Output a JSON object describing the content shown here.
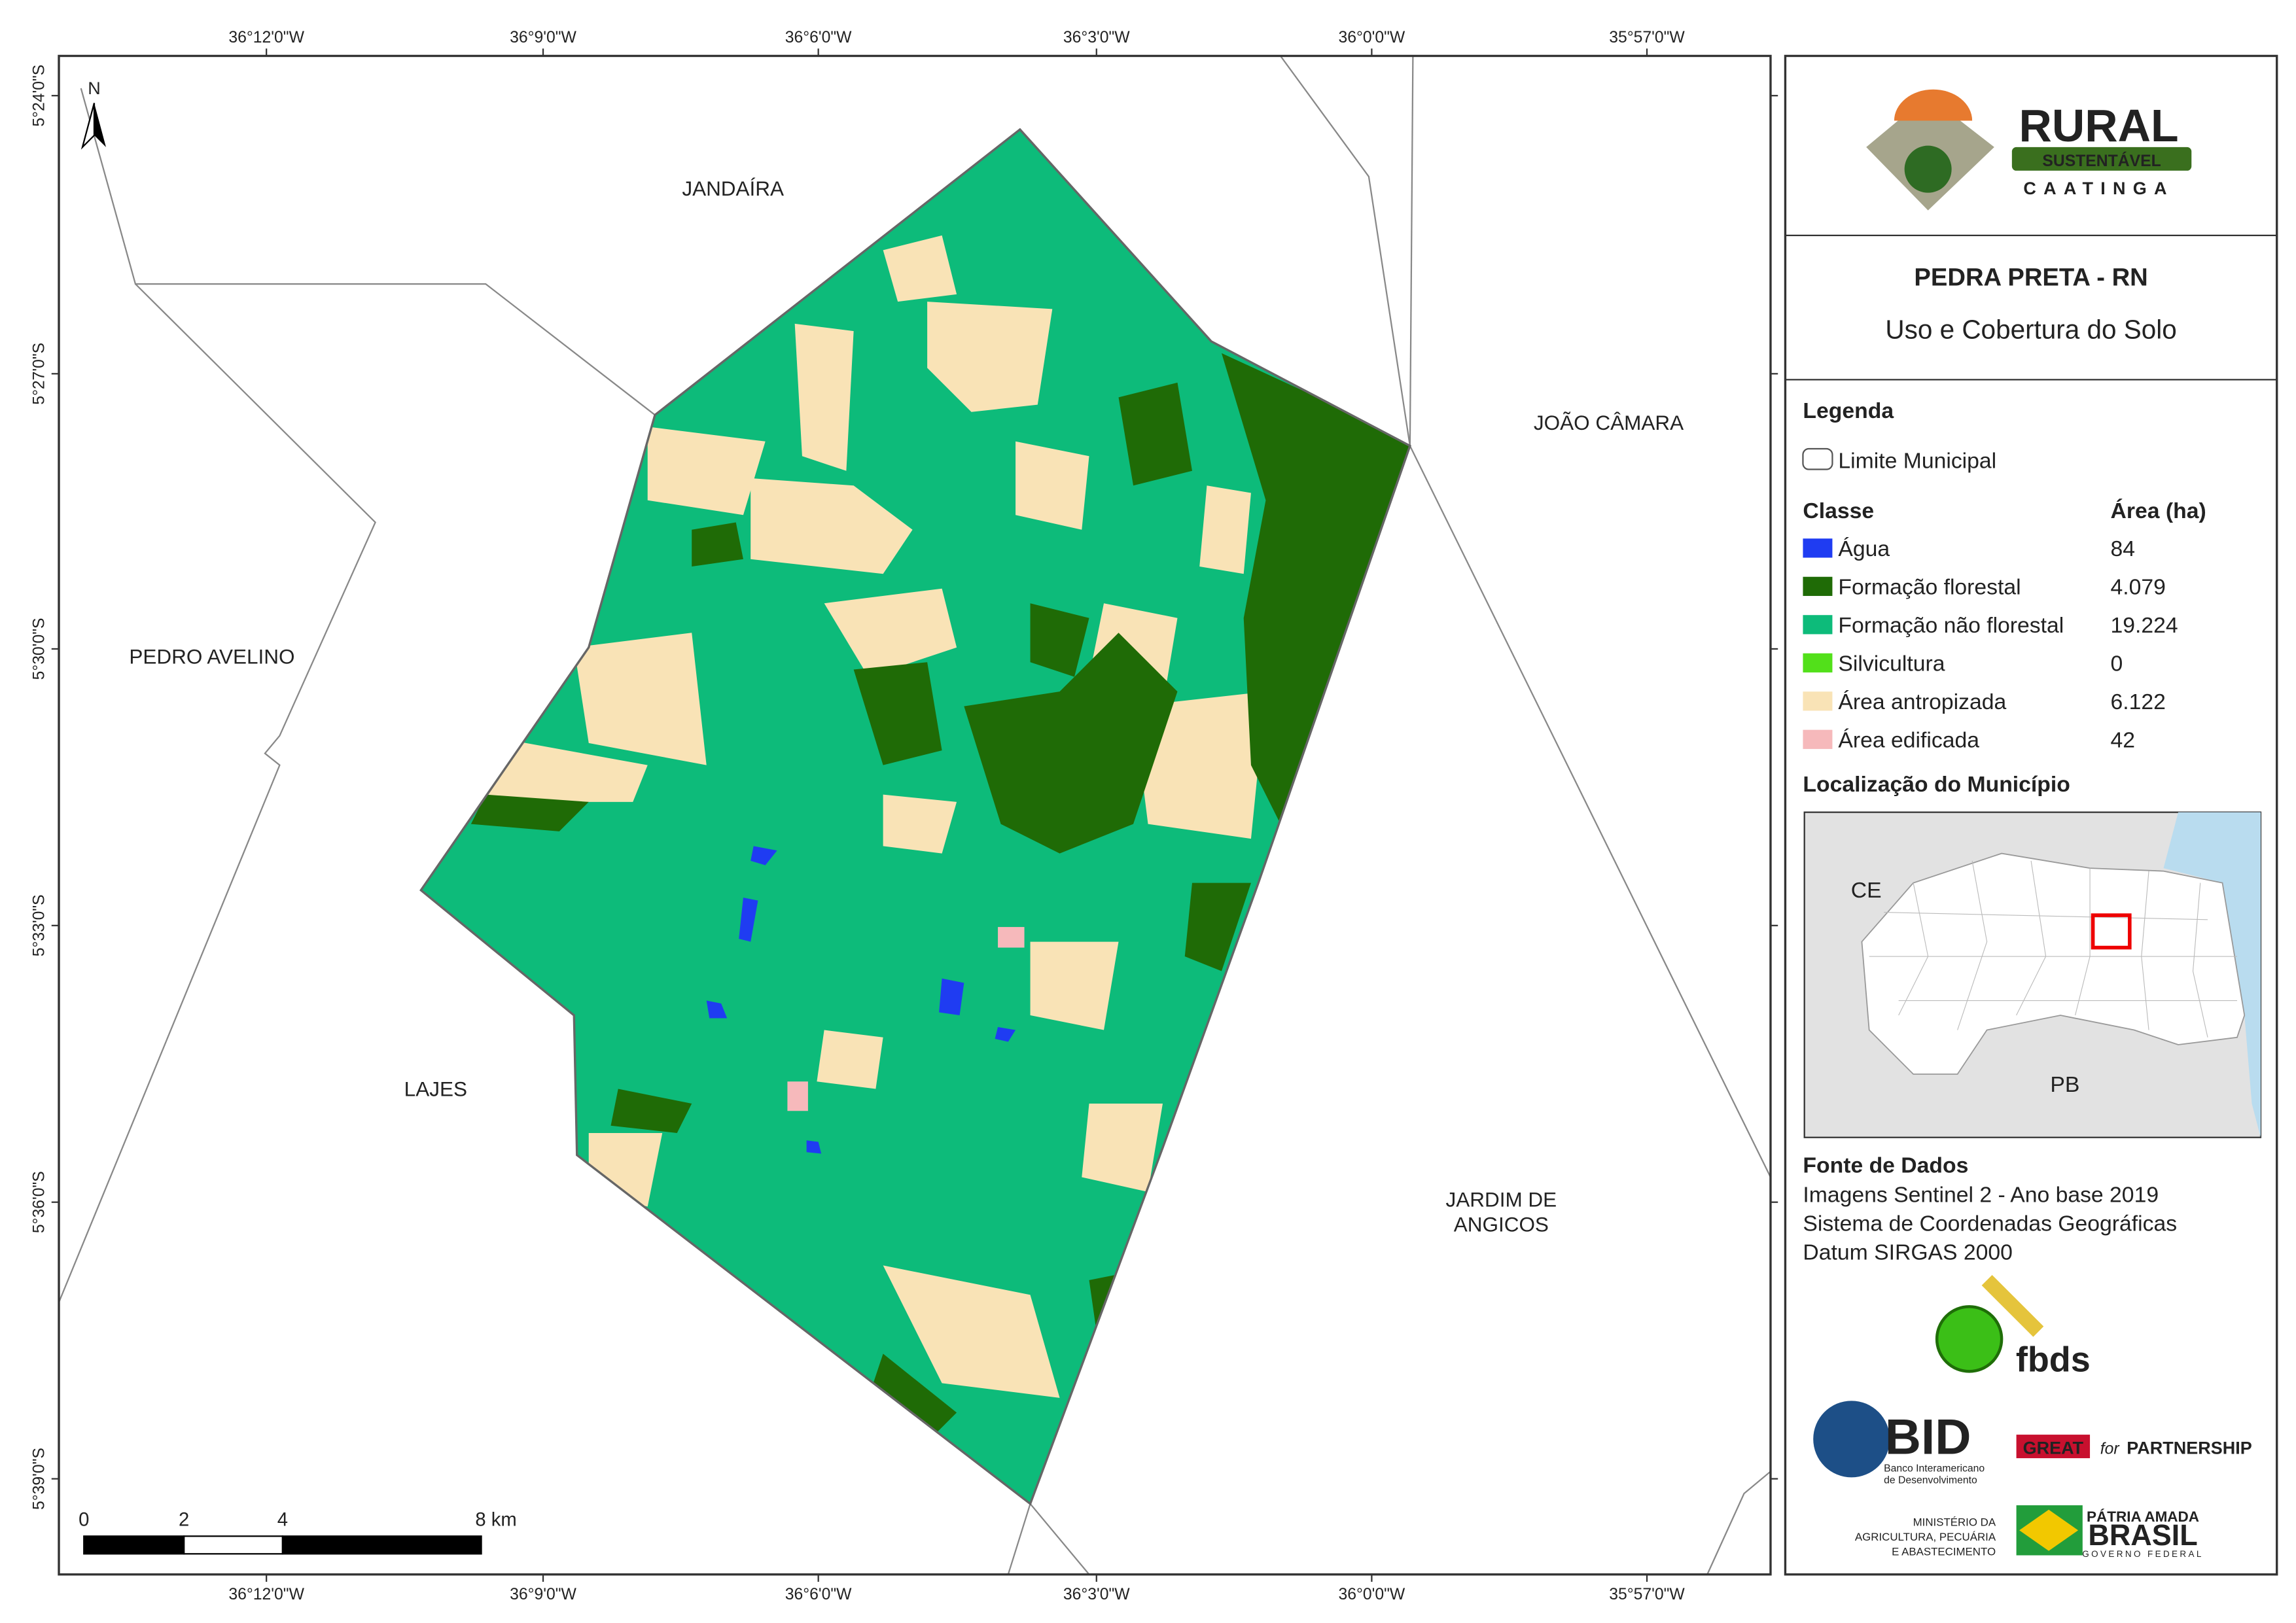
{
  "map": {
    "longitudes": [
      "36°12'0\"W",
      "36°9'0\"W",
      "36°6'0\"W",
      "36°3'0\"W",
      "36°0'0\"W",
      "35°57'0\"W"
    ],
    "latitudes": [
      "5°24'0\"S",
      "5°27'0\"S",
      "5°30'0\"S",
      "5°33'0\"S",
      "5°36'0\"S",
      "5°39'0\"S"
    ],
    "places": [
      {
        "lines": [
          "JANDAÍRA"
        ]
      },
      {
        "lines": [
          "JOÃO CÂMARA"
        ]
      },
      {
        "lines": [
          "PEDRO AVELINO"
        ]
      },
      {
        "lines": [
          "LAJES"
        ]
      },
      {
        "lines": [
          "JARDIM DE",
          "ANGICOS"
        ]
      }
    ],
    "north": "N",
    "scale_bar": [
      "0",
      "2",
      "4",
      "8 km"
    ]
  },
  "panel": {
    "title": "PEDRA PRETA - RN",
    "subtitle": "Uso e Cobertura do Solo",
    "legend_title": "Legenda",
    "boundary": "Limite Municipal",
    "class_header": "Classe",
    "area_header": "Área (ha)",
    "classes": [
      {
        "name": "Água",
        "area": "84",
        "color": "#1f3cf2"
      },
      {
        "name": "Formação florestal",
        "area": "4.079",
        "color": "#1f6b06"
      },
      {
        "name": "Formação não florestal",
        "area": "19.224",
        "color": "#0dbb7a"
      },
      {
        "name": "Silvicultura",
        "area": "0",
        "color": "#52e01a"
      },
      {
        "name": "Área antropizada",
        "area": "6.122",
        "color": "#f9e3b6"
      },
      {
        "name": "Área edificada",
        "area": "42",
        "color": "#f6b9bb"
      }
    ],
    "location_title": "Localização do Município",
    "inset_labels": [
      "CE",
      "PB"
    ],
    "sources_title": "Fonte de Dados",
    "sources": [
      "Imagens Sentinel 2 - Ano base 2019",
      "Sistema de Coordenadas Geográficas",
      "Datum SIRGAS 2000"
    ]
  },
  "logos": {
    "rural": [
      "RURAL",
      "SUSTENTÁVEL",
      "CAATINGA"
    ],
    "fbds": "fbds",
    "bid": [
      "BID",
      "Banco Interamericano",
      "de Desenvolvimento"
    ],
    "great": [
      "GREAT",
      "for",
      "PARTNERSHIP"
    ],
    "ministerio": [
      "MINISTÉRIO DA",
      "AGRICULTURA, PECUÁRIA",
      "E ABASTECIMENTO"
    ],
    "brasil": [
      "PÁTRIA AMADA",
      "BRASIL",
      "GOVERNO FEDERAL"
    ]
  }
}
